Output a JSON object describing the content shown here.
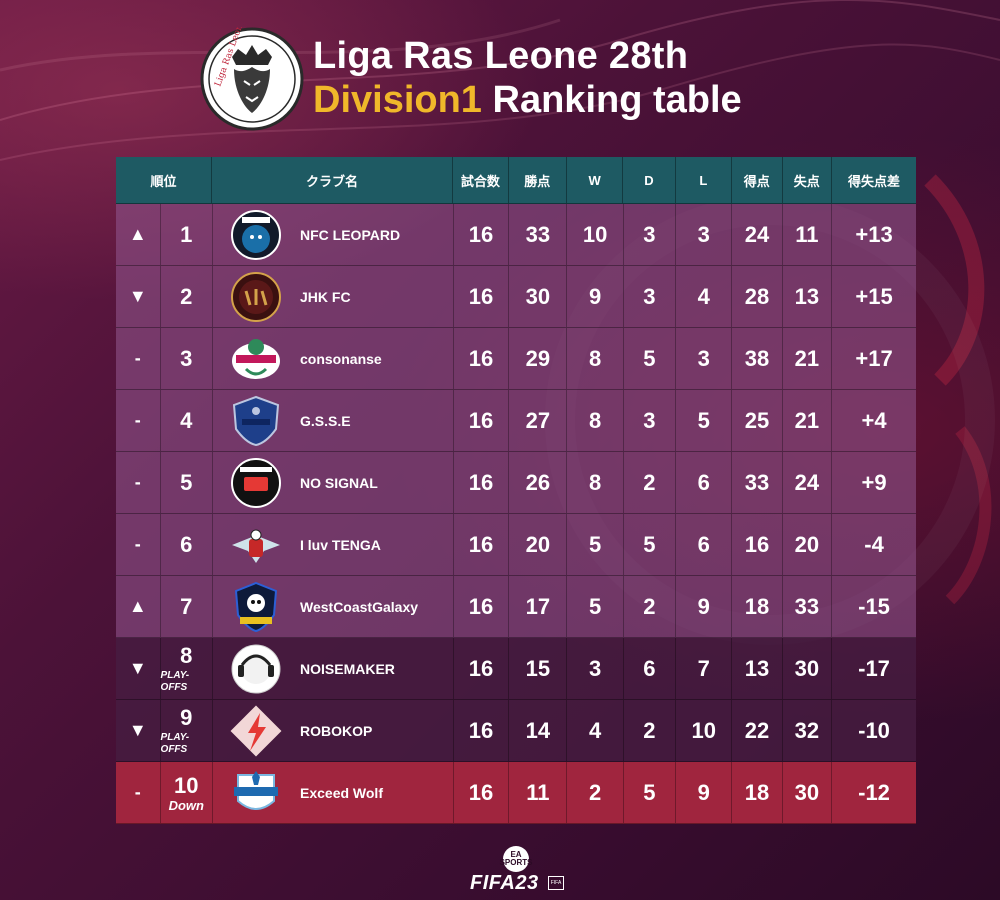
{
  "title": {
    "line1": "Liga Ras Leone 28th",
    "division": "Division1",
    "rest": "Ranking table"
  },
  "logo_text": "Liga Ras Leone",
  "columns": {
    "rank": "順位",
    "club": "クラブ名",
    "played": "試合数",
    "points": "勝点",
    "w": "W",
    "d": "D",
    "l": "L",
    "gf": "得点",
    "ga": "失点",
    "gd": "得失点差"
  },
  "rows": [
    {
      "trend": "▲",
      "rank": "1",
      "note": "",
      "club": "NFC LEOPARD",
      "played": "16",
      "points": "33",
      "w": "10",
      "d": "3",
      "l": "3",
      "gf": "24",
      "ga": "11",
      "gd": "+13",
      "style": "light",
      "badge": "leopard"
    },
    {
      "trend": "▼",
      "rank": "2",
      "note": "",
      "club": "JHK FC",
      "played": "16",
      "points": "30",
      "w": "9",
      "d": "3",
      "l": "4",
      "gf": "28",
      "ga": "13",
      "gd": "+15",
      "style": "light",
      "badge": "jhk"
    },
    {
      "trend": "-",
      "rank": "3",
      "note": "",
      "club": "consonanse",
      "played": "16",
      "points": "29",
      "w": "8",
      "d": "5",
      "l": "3",
      "gf": "38",
      "ga": "21",
      "gd": "+17",
      "style": "light",
      "badge": "consonanse"
    },
    {
      "trend": "-",
      "rank": "4",
      "note": "",
      "club": "G.S.S.E",
      "played": "16",
      "points": "27",
      "w": "8",
      "d": "3",
      "l": "5",
      "gf": "25",
      "ga": "21",
      "gd": "+4",
      "style": "light",
      "badge": "gsse"
    },
    {
      "trend": "-",
      "rank": "5",
      "note": "",
      "club": "NO SIGNAL",
      "played": "16",
      "points": "26",
      "w": "8",
      "d": "2",
      "l": "6",
      "gf": "33",
      "ga": "24",
      "gd": "+9",
      "style": "light",
      "badge": "nosignal"
    },
    {
      "trend": "-",
      "rank": "6",
      "note": "",
      "club": "I luv TENGA",
      "played": "16",
      "points": "20",
      "w": "5",
      "d": "5",
      "l": "6",
      "gf": "16",
      "ga": "20",
      "gd": "-4",
      "style": "light",
      "badge": "tenga"
    },
    {
      "trend": "▲",
      "rank": "7",
      "note": "",
      "club": "WestCoastGalaxy",
      "played": "16",
      "points": "17",
      "w": "5",
      "d": "2",
      "l": "9",
      "gf": "18",
      "ga": "33",
      "gd": "-15",
      "style": "light",
      "badge": "galaxy"
    },
    {
      "trend": "▼",
      "rank": "8",
      "note": "PLAY-OFFS",
      "club": "NOISEMAKER",
      "played": "16",
      "points": "15",
      "w": "3",
      "d": "6",
      "l": "7",
      "gf": "13",
      "ga": "30",
      "gd": "-17",
      "style": "dark",
      "badge": "noisemaker"
    },
    {
      "trend": "▼",
      "rank": "9",
      "note": "PLAY-OFFS",
      "club": "ROBOKOP",
      "played": "16",
      "points": "14",
      "w": "4",
      "d": "2",
      "l": "10",
      "gf": "22",
      "ga": "32",
      "gd": "-10",
      "style": "dark",
      "badge": "robokop"
    },
    {
      "trend": "-",
      "rank": "10",
      "note": "Down",
      "club": "Exceed Wolf",
      "played": "16",
      "points": "11",
      "w": "2",
      "d": "5",
      "l": "9",
      "gf": "18",
      "ga": "30",
      "gd": "-12",
      "style": "down",
      "badge": "wolf"
    }
  ],
  "footer": {
    "ea": "EA SPORTS",
    "fifa": "FIFA23",
    "fifa_mark": "FIFA"
  },
  "colors": {
    "accent_gold": "#f0b82a",
    "header_teal": "#1e5a63",
    "down_red": "#a0253e"
  }
}
